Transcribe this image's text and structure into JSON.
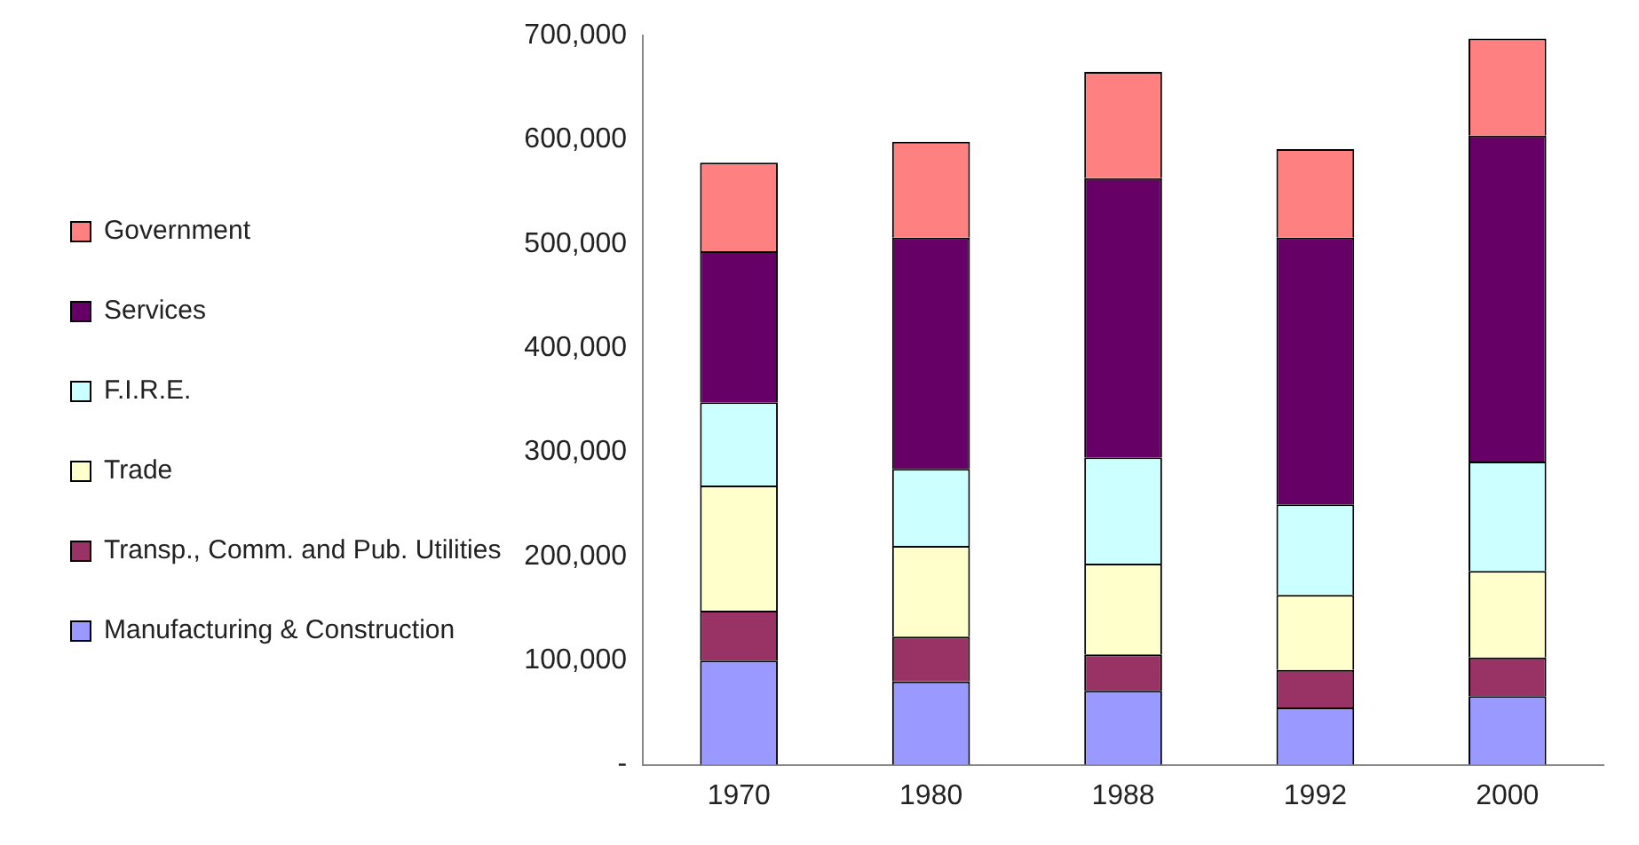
{
  "chart_data": {
    "type": "bar",
    "stacked": true,
    "categories": [
      "1970",
      "1980",
      "1988",
      "1992",
      "2000"
    ],
    "series": [
      {
        "name": "Manufacturing & Construction",
        "color": "#9999ff",
        "values": [
          100000,
          80000,
          71000,
          55000,
          66000
        ]
      },
      {
        "name": "Transp., Comm. and Pub. Utilities",
        "color": "#993366",
        "values": [
          48000,
          43000,
          35000,
          36000,
          37000
        ]
      },
      {
        "name": "Trade",
        "color": "#ffffcc",
        "values": [
          120000,
          87000,
          87000,
          72000,
          83000
        ]
      },
      {
        "name": "F.I.R.E.",
        "color": "#ccffff",
        "values": [
          80000,
          74000,
          102000,
          87000,
          105000
        ]
      },
      {
        "name": "Services",
        "color": "#660066",
        "values": [
          145000,
          222000,
          268000,
          256000,
          313000
        ]
      },
      {
        "name": "Government",
        "color": "#ff8080",
        "values": [
          85000,
          92000,
          102000,
          85000,
          93000
        ]
      }
    ],
    "ylim": [
      0,
      700000
    ],
    "yticks": [
      {
        "value": 0,
        "label": "-"
      },
      {
        "value": 100000,
        "label": "100,000"
      },
      {
        "value": 200000,
        "label": "200,000"
      },
      {
        "value": 300000,
        "label": "300,000"
      },
      {
        "value": 400000,
        "label": "400,000"
      },
      {
        "value": 500000,
        "label": "500,000"
      },
      {
        "value": 600000,
        "label": "600,000"
      },
      {
        "value": 700000,
        "label": "700,000"
      }
    ],
    "grid": false,
    "legend": "left"
  }
}
